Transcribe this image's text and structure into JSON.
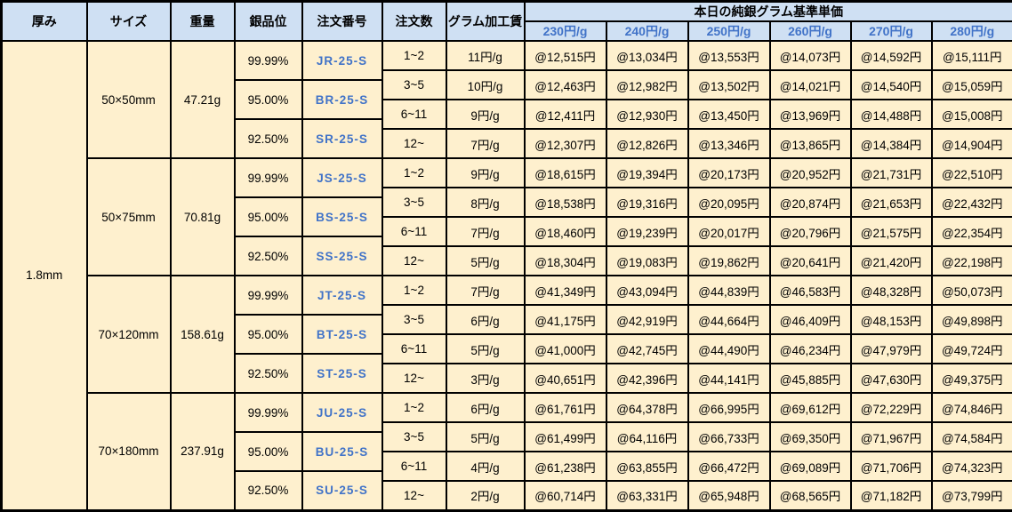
{
  "table": {
    "headers": {
      "thickness": "厚み",
      "size": "サイズ",
      "weight": "重量",
      "purity": "銀品位",
      "order_no": "注文番号",
      "order_qty": "注文数",
      "gram_fee": "グラム加工賃",
      "base_price_group": "本日の純銀グラム基準単価",
      "price_tiers": [
        "230円/g",
        "240円/g",
        "250円/g",
        "260円/g",
        "270円/g",
        "280円/g"
      ]
    },
    "thickness": "1.8mm",
    "blocks": [
      {
        "size": "50×50mm",
        "weight": "47.21g",
        "purities": [
          {
            "purity": "99.99%",
            "order_no": "JR-25-S"
          },
          {
            "purity": "95.00%",
            "order_no": "BR-25-S"
          },
          {
            "purity": "92.50%",
            "order_no": "SR-25-S"
          }
        ],
        "rows": [
          {
            "qty": "1~2",
            "fee": "11円/g",
            "prices": [
              "@12,515円",
              "@13,034円",
              "@13,553円",
              "@14,073円",
              "@14,592円",
              "@15,111円"
            ]
          },
          {
            "qty": "3~5",
            "fee": "10円/g",
            "prices": [
              "@12,463円",
              "@12,982円",
              "@13,502円",
              "@14,021円",
              "@14,540円",
              "@15,059円"
            ]
          },
          {
            "qty": "6~11",
            "fee": "9円/g",
            "prices": [
              "@12,411円",
              "@12,930円",
              "@13,450円",
              "@13,969円",
              "@14,488円",
              "@15,008円"
            ]
          },
          {
            "qty": "12~",
            "fee": "7円/g",
            "prices": [
              "@12,307円",
              "@12,826円",
              "@13,346円",
              "@13,865円",
              "@14,384円",
              "@14,904円"
            ]
          }
        ]
      },
      {
        "size": "50×75mm",
        "weight": "70.81g",
        "purities": [
          {
            "purity": "99.99%",
            "order_no": "JS-25-S"
          },
          {
            "purity": "95.00%",
            "order_no": "BS-25-S"
          },
          {
            "purity": "92.50%",
            "order_no": "SS-25-S"
          }
        ],
        "rows": [
          {
            "qty": "1~2",
            "fee": "9円/g",
            "prices": [
              "@18,615円",
              "@19,394円",
              "@20,173円",
              "@20,952円",
              "@21,731円",
              "@22,510円"
            ]
          },
          {
            "qty": "3~5",
            "fee": "8円/g",
            "prices": [
              "@18,538円",
              "@19,316円",
              "@20,095円",
              "@20,874円",
              "@21,653円",
              "@22,432円"
            ]
          },
          {
            "qty": "6~11",
            "fee": "7円/g",
            "prices": [
              "@18,460円",
              "@19,239円",
              "@20,017円",
              "@20,796円",
              "@21,575円",
              "@22,354円"
            ]
          },
          {
            "qty": "12~",
            "fee": "5円/g",
            "prices": [
              "@18,304円",
              "@19,083円",
              "@19,862円",
              "@20,641円",
              "@21,420円",
              "@22,198円"
            ]
          }
        ]
      },
      {
        "size": "70×120mm",
        "weight": "158.61g",
        "purities": [
          {
            "purity": "99.99%",
            "order_no": "JT-25-S"
          },
          {
            "purity": "95.00%",
            "order_no": "BT-25-S"
          },
          {
            "purity": "92.50%",
            "order_no": "ST-25-S"
          }
        ],
        "rows": [
          {
            "qty": "1~2",
            "fee": "7円/g",
            "prices": [
              "@41,349円",
              "@43,094円",
              "@44,839円",
              "@46,583円",
              "@48,328円",
              "@50,073円"
            ]
          },
          {
            "qty": "3~5",
            "fee": "6円/g",
            "prices": [
              "@41,175円",
              "@42,919円",
              "@44,664円",
              "@46,409円",
              "@48,153円",
              "@49,898円"
            ]
          },
          {
            "qty": "6~11",
            "fee": "5円/g",
            "prices": [
              "@41,000円",
              "@42,745円",
              "@44,490円",
              "@46,234円",
              "@47,979円",
              "@49,724円"
            ]
          },
          {
            "qty": "12~",
            "fee": "3円/g",
            "prices": [
              "@40,651円",
              "@42,396円",
              "@44,141円",
              "@45,885円",
              "@47,630円",
              "@49,375円"
            ]
          }
        ]
      },
      {
        "size": "70×180mm",
        "weight": "237.91g",
        "purities": [
          {
            "purity": "99.99%",
            "order_no": "JU-25-S"
          },
          {
            "purity": "95.00%",
            "order_no": "BU-25-S"
          },
          {
            "purity": "92.50%",
            "order_no": "SU-25-S"
          }
        ],
        "rows": [
          {
            "qty": "1~2",
            "fee": "6円/g",
            "prices": [
              "@61,761円",
              "@64,378円",
              "@66,995円",
              "@69,612円",
              "@72,229円",
              "@74,846円"
            ]
          },
          {
            "qty": "3~5",
            "fee": "5円/g",
            "prices": [
              "@61,499円",
              "@64,116円",
              "@66,733円",
              "@69,350円",
              "@71,967円",
              "@74,584円"
            ]
          },
          {
            "qty": "6~11",
            "fee": "4円/g",
            "prices": [
              "@61,238円",
              "@63,855円",
              "@66,472円",
              "@69,089円",
              "@71,706円",
              "@74,323円"
            ]
          },
          {
            "qty": "12~",
            "fee": "2円/g",
            "prices": [
              "@60,714円",
              "@63,331円",
              "@65,948円",
              "@68,565円",
              "@71,182円",
              "@73,799円"
            ]
          }
        ]
      }
    ],
    "colors": {
      "header_bg": "#cfe0f3",
      "cell_bg": "#fef0ce",
      "border": "#000000",
      "tier_text": "#4173c8",
      "order_text": "#4173c8"
    }
  }
}
